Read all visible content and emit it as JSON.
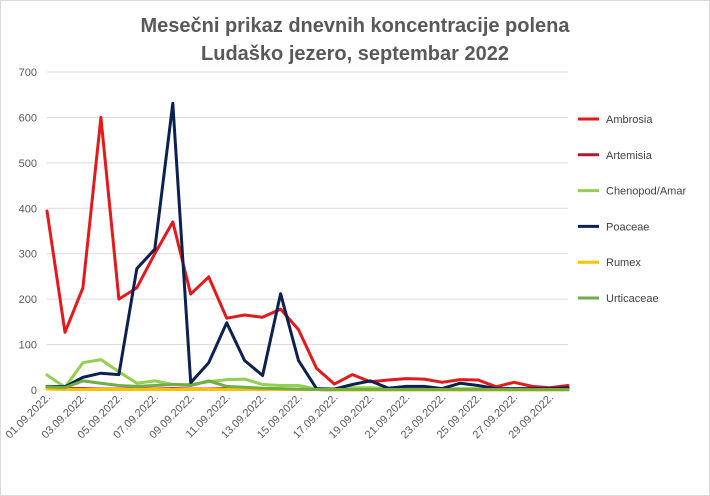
{
  "chart_data": {
    "type": "line",
    "title_line1": "Mesečni prikaz dnevnih koncentracije polena",
    "title_line2": "Ludaško jezero, septembar 2022",
    "ylim": [
      0,
      700
    ],
    "yticks": [
      0,
      100,
      200,
      300,
      400,
      500,
      600,
      700
    ],
    "grid": "horizontal",
    "legend_position": "right",
    "x": [
      "01.09.2022.",
      "02.09.2022.",
      "03.09.2022.",
      "04.09.2022.",
      "05.09.2022.",
      "06.09.2022.",
      "07.09.2022.",
      "08.09.2022.",
      "09.09.2022.",
      "10.09.2022.",
      "11.09.2022.",
      "12.09.2022.",
      "13.09.2022.",
      "14.09.2022.",
      "15.09.2022.",
      "16.09.2022.",
      "17.09.2022.",
      "18.09.2022.",
      "19.09.2022.",
      "20.09.2022.",
      "21.09.2022.",
      "22.09.2022.",
      "23.09.2022.",
      "24.09.2022.",
      "25.09.2022.",
      "26.09.2022.",
      "27.09.2022.",
      "28.09.2022.",
      "29.09.2022.",
      "30.09.2022."
    ],
    "xtick_labels": [
      "01.09.2022.",
      "03.09.2022.",
      "05.09.2022.",
      "07.09.2022.",
      "09.09.2022.",
      "11.09.2022.",
      "13.09.2022.",
      "15.09.2022.",
      "17.09.2022.",
      "19.09.2022.",
      "21.09.2022.",
      "23.09.2022.",
      "25.09.2022.",
      "27.09.2022.",
      "29.09.2022."
    ],
    "series": [
      {
        "name": "Ambrosia",
        "color": "#e31a1c",
        "values": [
          394,
          127,
          225,
          600,
          200,
          225,
          300,
          370,
          211,
          249,
          158,
          165,
          160,
          178,
          133,
          48,
          13,
          34,
          18,
          22,
          25,
          24,
          17,
          23,
          22,
          7,
          17,
          8,
          5,
          10
        ]
      },
      {
        "name": "Artemisia",
        "color": "#b2182b",
        "values": [
          5,
          3,
          3,
          2,
          2,
          2,
          2,
          3,
          2,
          2,
          3,
          2,
          2,
          2,
          1,
          1,
          0,
          0,
          0,
          0,
          0,
          0,
          0,
          0,
          0,
          0,
          0,
          0,
          0,
          0
        ]
      },
      {
        "name": "Chenopod/Amar",
        "color": "#92d050",
        "values": [
          33,
          6,
          60,
          67,
          40,
          15,
          20,
          12,
          12,
          18,
          23,
          24,
          12,
          10,
          10,
          2,
          2,
          5,
          5,
          3,
          4,
          3,
          3,
          3,
          3,
          2,
          3,
          2,
          2,
          2
        ]
      },
      {
        "name": "Poaceae",
        "color": "#0d2150",
        "values": [
          8,
          7,
          28,
          37,
          34,
          267,
          310,
          631,
          16,
          60,
          148,
          65,
          32,
          212,
          65,
          3,
          2,
          12,
          20,
          4,
          8,
          8,
          3,
          15,
          10,
          3,
          3,
          3,
          3,
          5
        ]
      },
      {
        "name": "Rumex",
        "color": "#ffc000",
        "values": [
          2,
          1,
          1,
          1,
          1,
          1,
          1,
          1,
          1,
          1,
          1,
          1,
          1,
          1,
          1,
          1,
          0,
          0,
          0,
          0,
          0,
          0,
          0,
          0,
          0,
          0,
          0,
          0,
          0,
          0
        ]
      },
      {
        "name": "Urticaceae",
        "color": "#70ad47",
        "values": [
          7,
          5,
          20,
          15,
          10,
          8,
          10,
          12,
          10,
          20,
          8,
          6,
          4,
          3,
          2,
          1,
          1,
          1,
          1,
          1,
          1,
          1,
          1,
          1,
          1,
          1,
          1,
          1,
          1,
          1
        ]
      }
    ]
  }
}
